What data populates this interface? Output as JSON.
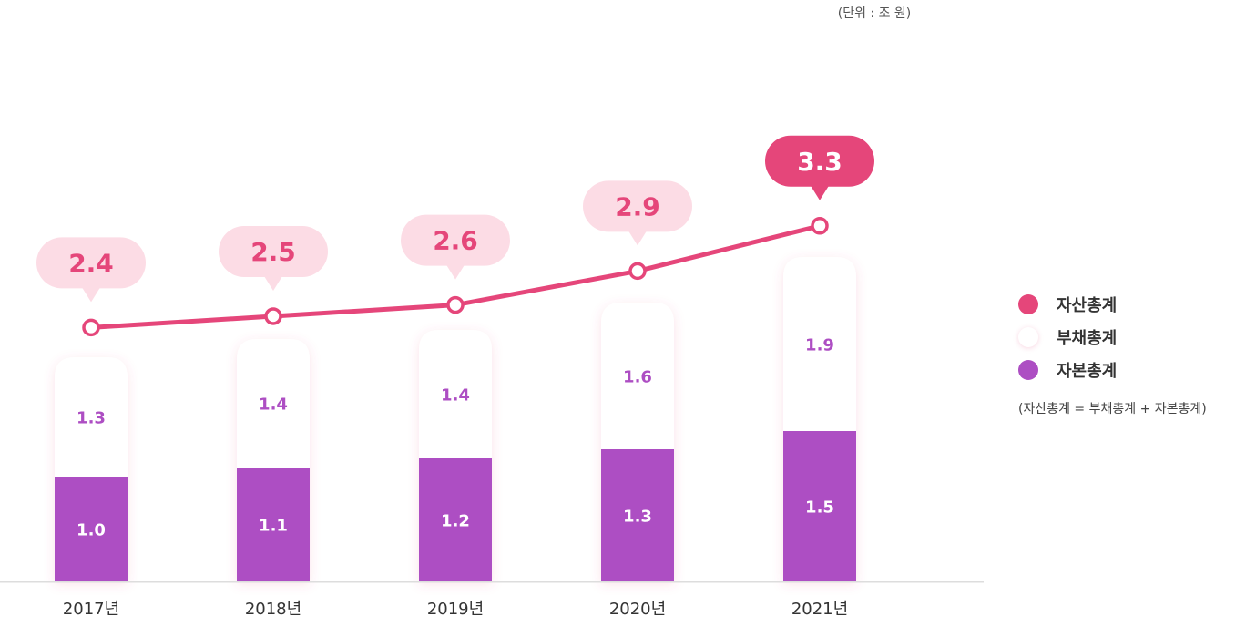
{
  "unit_label": "(단위 : 조 원)",
  "colors": {
    "assets": "#E5467A",
    "assets_bubble_bg": "#FCDCE5",
    "liabilities": "#FFFFFF",
    "capital": "#AD4EC3",
    "liability_text": "#AD4EC3",
    "capital_text": "#FFFFFF"
  },
  "legend": {
    "items": [
      {
        "label": "자산총계",
        "color": "#E5467A"
      },
      {
        "label": "부채총계",
        "color": "#FFFFFF"
      },
      {
        "label": "자본총계",
        "color": "#AD4EC3"
      }
    ],
    "note": "(자산총계 = 부채총계 + 자본총계)"
  },
  "chart_data": {
    "type": "bar",
    "categories": [
      "2017년",
      "2018년",
      "2019년",
      "2020년",
      "2021년"
    ],
    "series": [
      {
        "name": "자본총계",
        "type": "bar",
        "stack": "total",
        "values": [
          1.0,
          1.1,
          1.2,
          1.3,
          1.5
        ],
        "labels": [
          "1.0",
          "1.1",
          "1.2",
          "1.3",
          "1.5"
        ]
      },
      {
        "name": "부채총계",
        "type": "bar",
        "stack": "total",
        "values": [
          1.3,
          1.4,
          1.4,
          1.6,
          1.9
        ],
        "labels": [
          "1.3",
          "1.4",
          "1.4",
          "1.6",
          "1.9"
        ]
      },
      {
        "name": "자산총계",
        "type": "line",
        "values": [
          2.4,
          2.5,
          2.6,
          2.9,
          3.3
        ],
        "labels": [
          "2.4",
          "2.5",
          "2.6",
          "2.9",
          "3.3"
        ]
      }
    ],
    "legend_position": "right",
    "grid": false
  }
}
